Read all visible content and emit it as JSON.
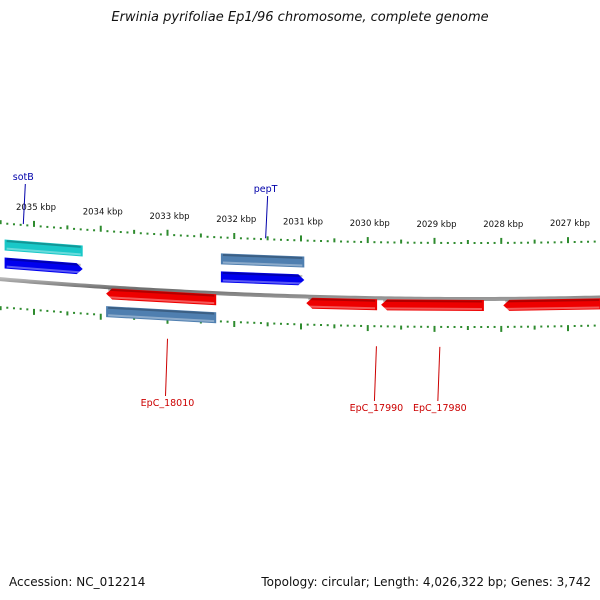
{
  "title": "Erwinia pyrifoliae Ep1/96 chromosome, complete genome",
  "footer": {
    "accession": "Accession: NC_012214",
    "summary": "Topology: circular; Length: 4,026,322 bp; Genes: 3,742"
  },
  "colors": {
    "backbone": "#7a7a7a",
    "tick": "#2e8b2e",
    "forward_gene": "#0000ee",
    "forward_rna": "#19c8c8",
    "reverse_gene": "#ee0000",
    "steel": "#4f7fb0",
    "label_blue": "#0000aa",
    "label_red": "#cc0000"
  },
  "kbp_labels": [
    {
      "kbp": 2035,
      "text": "2035 kbp"
    },
    {
      "kbp": 2034,
      "text": "2034 kbp"
    },
    {
      "kbp": 2033,
      "text": "2033 kbp"
    },
    {
      "kbp": 2032,
      "text": "2032 kbp"
    },
    {
      "kbp": 2031,
      "text": "2031 kbp"
    },
    {
      "kbp": 2030,
      "text": "2030 kbp"
    },
    {
      "kbp": 2029,
      "text": "2029 kbp"
    },
    {
      "kbp": 2028,
      "text": "2028 kbp"
    },
    {
      "kbp": 2027,
      "text": "2027 kbp"
    }
  ],
  "features": [
    {
      "name": "sotB-rna",
      "strand": "+",
      "start_kbp": 2035.44,
      "end_kbp": 2034.27,
      "color": "forward_rna",
      "track": "outer"
    },
    {
      "name": "sotB-cds",
      "strand": "+",
      "start_kbp": 2035.44,
      "end_kbp": 2034.27,
      "color": "forward_gene",
      "track": "inner",
      "arrow": true
    },
    {
      "name": "pepT-steel",
      "strand": "+",
      "start_kbp": 2032.2,
      "end_kbp": 2030.95,
      "color": "steel",
      "track": "outer"
    },
    {
      "name": "pepT-cds",
      "strand": "+",
      "start_kbp": 2032.2,
      "end_kbp": 2030.95,
      "color": "forward_gene",
      "track": "inner",
      "arrow": true
    },
    {
      "name": "EpC_18010-cds",
      "strand": "-",
      "start_kbp": 2033.92,
      "end_kbp": 2032.27,
      "color": "reverse_gene",
      "track": "inner",
      "arrow": true
    },
    {
      "name": "EpC_18010-steel",
      "strand": "-",
      "start_kbp": 2033.92,
      "end_kbp": 2032.27,
      "color": "steel",
      "track": "outer"
    },
    {
      "name": "EpC_17990-cds",
      "strand": "-",
      "start_kbp": 2030.92,
      "end_kbp": 2029.86,
      "color": "reverse_gene",
      "track": "inner",
      "arrow": true
    },
    {
      "name": "EpC_17980-cds",
      "strand": "-",
      "start_kbp": 2029.8,
      "end_kbp": 2028.26,
      "color": "reverse_gene",
      "track": "inner",
      "arrow": true
    },
    {
      "name": "next-cds",
      "strand": "-",
      "start_kbp": 2027.97,
      "end_kbp": 2026.5,
      "color": "reverse_gene",
      "track": "inner",
      "arrow": true
    }
  ],
  "gene_labels": [
    {
      "text": "sotB",
      "kbp": 2035.16,
      "strand": "+",
      "color": "label_blue"
    },
    {
      "text": "pepT",
      "kbp": 2031.53,
      "strand": "+",
      "color": "label_blue"
    },
    {
      "text": "EpC_18010",
      "kbp": 2033.0,
      "strand": "-",
      "color": "label_red"
    },
    {
      "text": "EpC_17990",
      "kbp": 2029.87,
      "strand": "-",
      "color": "label_red"
    },
    {
      "text": "EpC_17980",
      "kbp": 2028.92,
      "strand": "-",
      "color": "label_red"
    }
  ]
}
